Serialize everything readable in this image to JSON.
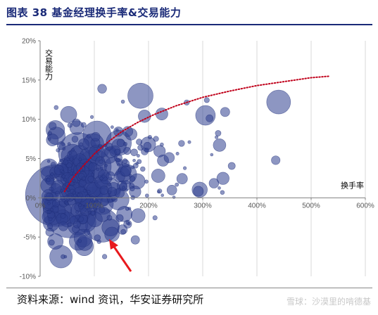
{
  "figure_title": "图表 38  基金经理换手率&交易能力",
  "source_text": "资料来源：wind 资讯，华安证券研究所",
  "watermark": "雪球：沙漠里的啃德基",
  "colors": {
    "bubble": "#2f3f8f",
    "trend": "#c0001a",
    "arrow": "#e8191d",
    "title": "#1a2a78"
  },
  "chart_data": {
    "type": "scatter",
    "title": "",
    "xlabel": "换手率",
    "ylabel": "交易能力",
    "xlim": [
      0,
      6
    ],
    "ylim": [
      -0.1,
      0.2
    ],
    "x_ticks": [
      0,
      1,
      2,
      3,
      4,
      5,
      6
    ],
    "x_tick_labels": [
      "0%",
      "100%",
      "200%",
      "300%",
      "400%",
      "500%",
      "600%"
    ],
    "y_ticks": [
      -0.1,
      -0.05,
      0,
      0.05,
      0.1,
      0.15,
      0.2
    ],
    "y_tick_labels": [
      "-10%",
      "-5%",
      "0%",
      "5%",
      "10%",
      "15%",
      "20%"
    ],
    "grid": "vertical",
    "trend_line": {
      "style": "dotted",
      "x": [
        0.45,
        0.6,
        0.8,
        1.0,
        1.25,
        1.5,
        1.8,
        2.1,
        2.5,
        3.0,
        3.5,
        4.0,
        4.5,
        5.0,
        5.35
      ],
      "y": [
        0.008,
        0.025,
        0.041,
        0.056,
        0.071,
        0.084,
        0.096,
        0.106,
        0.117,
        0.128,
        0.136,
        0.143,
        0.148,
        0.153,
        0.155
      ]
    },
    "large_bubbles": [
      {
        "x": 0.3,
        "y": 0.003,
        "r": 44
      },
      {
        "x": 0.55,
        "y": -0.017,
        "r": 38
      },
      {
        "x": 0.7,
        "y": 0.058,
        "r": 28
      },
      {
        "x": 0.85,
        "y": 0.02,
        "r": 30
      },
      {
        "x": 1.0,
        "y": 0.04,
        "r": 24
      },
      {
        "x": 1.15,
        "y": -0.035,
        "r": 24
      },
      {
        "x": 1.05,
        "y": 0.08,
        "r": 20
      },
      {
        "x": 1.45,
        "y": 0.07,
        "r": 18
      },
      {
        "x": 1.85,
        "y": 0.13,
        "r": 18
      },
      {
        "x": 1.25,
        "y": 0.01,
        "r": 18
      },
      {
        "x": 1.6,
        "y": 0.03,
        "r": 14
      },
      {
        "x": 4.4,
        "y": 0.122,
        "r": 17
      },
      {
        "x": 3.05,
        "y": 0.105,
        "r": 14
      },
      {
        "x": 0.65,
        "y": 0.035,
        "r": 22
      }
    ],
    "scatter_seed": 38,
    "scatter_count": 330
  }
}
